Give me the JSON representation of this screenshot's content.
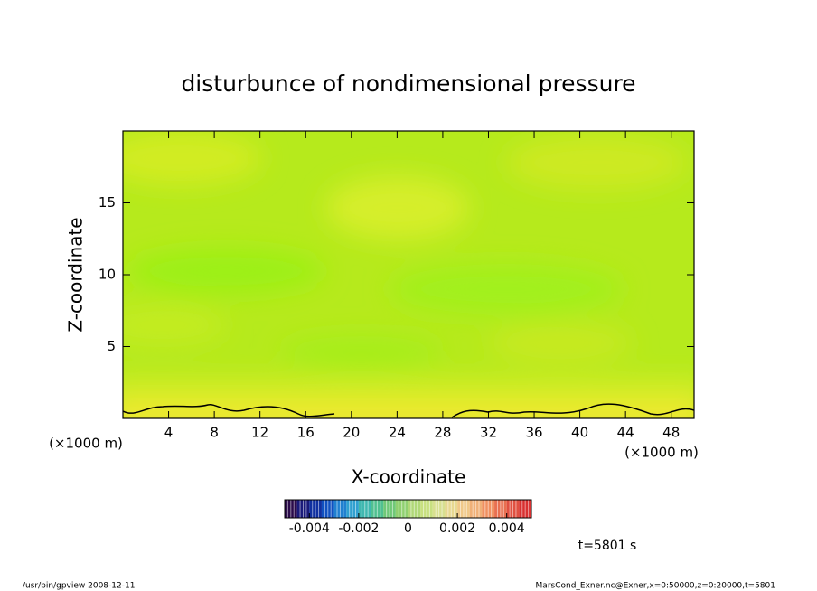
{
  "chart_data": {
    "type": "contour",
    "title": "disturbunce of nondimensional pressure",
    "xlabel": "X-coordinate",
    "ylabel": "Z-coordinate",
    "x_unit_label": "(×1000 m)",
    "xlim": [
      0,
      50
    ],
    "xticks": [
      4,
      8,
      12,
      16,
      20,
      24,
      28,
      32,
      36,
      40,
      44,
      48
    ],
    "ylim": [
      0,
      20
    ],
    "yticks": [
      5,
      10,
      15
    ],
    "colorbar": {
      "lim": [
        -0.005,
        0.005
      ],
      "ticks": [
        -0.004,
        -0.002,
        0,
        0.002,
        0.004
      ],
      "colors": [
        "#2a0a4a",
        "#1a1a7a",
        "#1030a0",
        "#1050c0",
        "#2080d0",
        "#30a0d0",
        "#40b8b0",
        "#50c090",
        "#70c878",
        "#90d070",
        "#b0d878",
        "#c8e080",
        "#d8e090",
        "#e8d890",
        "#f0c888",
        "#f0b078",
        "#f09060",
        "#e87050",
        "#e05040",
        "#d83030"
      ]
    },
    "time_label": "t=5801 s",
    "footer_left": "/usr/bin/gpview   2008-12-11",
    "footer_right": "MarsCond_Exner.nc@Exner,x=0:50000,z=0:20000,t=5801"
  }
}
